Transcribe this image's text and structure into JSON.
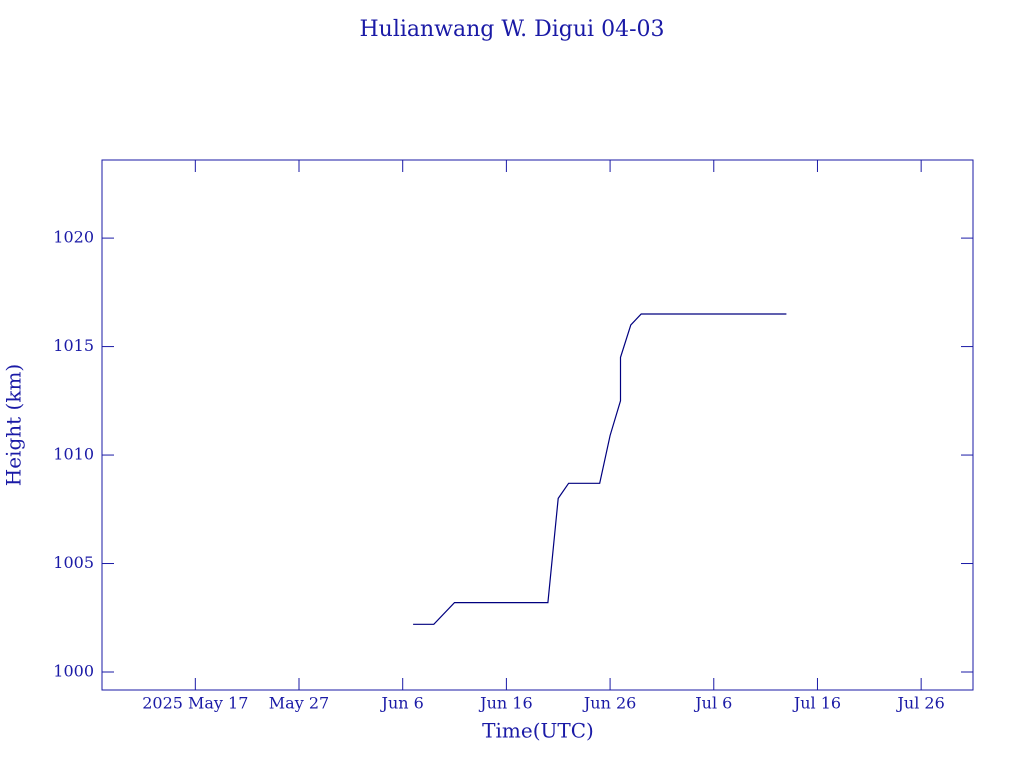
{
  "chart_data": {
    "type": "line",
    "title": "Hulianwang W. Digui 04-03",
    "xlabel": "Time(UTC)",
    "ylabel": "Height (km)",
    "x": [
      "2025-06-07",
      "2025-06-09",
      "2025-06-11",
      "2025-06-20",
      "2025-06-21",
      "2025-06-22",
      "2025-06-25",
      "2025-06-26",
      "2025-06-27",
      "2025-06-27",
      "2025-06-28",
      "2025-06-28",
      "2025-06-29",
      "2025-07-13"
    ],
    "series": [
      {
        "name": "Hulianwang W. Digui 04-03",
        "color": "#00007f",
        "values": [
          1002.2,
          1002.2,
          1003.2,
          1003.2,
          1008.0,
          1008.7,
          1008.7,
          1010.9,
          1012.5,
          1014.5,
          1016.0,
          1016.0,
          1016.5,
          1016.5
        ]
      }
    ],
    "xlim": [
      "2025-05-08",
      "2025-07-31"
    ],
    "xticks": [
      {
        "value": "2025-05-17",
        "label": "2025 May 17"
      },
      {
        "value": "2025-05-27",
        "label": "May 27"
      },
      {
        "value": "2025-06-06",
        "label": "Jun  6"
      },
      {
        "value": "2025-06-16",
        "label": "Jun 16"
      },
      {
        "value": "2025-06-26",
        "label": "Jun 26"
      },
      {
        "value": "2025-07-06",
        "label": "Jul  6"
      },
      {
        "value": "2025-07-16",
        "label": "Jul 16"
      },
      {
        "value": "2025-07-26",
        "label": "Jul 26"
      }
    ],
    "ylim": [
      999.17,
      1023.6
    ],
    "yticks": [
      1000,
      1005,
      1010,
      1015,
      1020
    ]
  }
}
